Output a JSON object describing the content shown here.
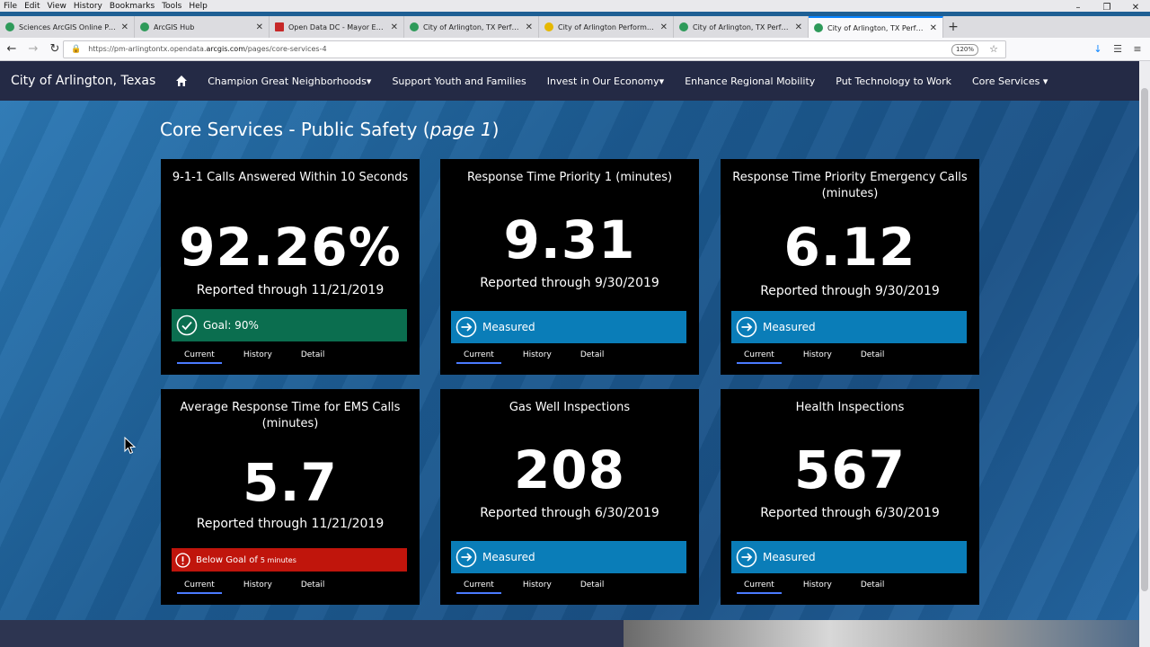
{
  "menu": [
    "File",
    "Edit",
    "View",
    "History",
    "Bookmarks",
    "Tools",
    "Help"
  ],
  "tabs": [
    {
      "title": "Sciences ArcGIS Online Portal"
    },
    {
      "title": "ArcGIS Hub"
    },
    {
      "title": "Open Data DC - Mayor Enviro"
    },
    {
      "title": "City of Arlington, TX Performa"
    },
    {
      "title": "City of Arlington Performance"
    },
    {
      "title": "City of Arlington, TX Performa"
    },
    {
      "title": "City of Arlington, TX Performa"
    }
  ],
  "url": {
    "prefix": "https://pm-arlingtontx.opendata.",
    "domain": "arcgis.com",
    "path": "/pages/core-services-4",
    "zoom": "120%"
  },
  "site": {
    "brand": "City of Arlington, Texas",
    "nav": [
      "Champion Great Neighborhoods",
      "Support Youth and Families",
      "Invest in Our Economy",
      "Enhance Regional Mobility",
      "Put Technology to Work",
      "Core Services"
    ]
  },
  "page": {
    "title": "Core Services - Public Safety (",
    "title_em": "page 1",
    "title_end": ")"
  },
  "tab_labels": {
    "current": "Current",
    "history": "History",
    "detail": "Detail"
  },
  "cards": [
    {
      "title": "9-1-1 Calls Answered Within 10 Seconds",
      "value": "92.26%",
      "sub": "Reported through 11/21/2019",
      "status": "Goal: 90%",
      "status_small": ""
    },
    {
      "title": "Response Time Priority 1 (minutes)",
      "value": "9.31",
      "sub": "Reported through 9/30/2019",
      "status": "Measured",
      "status_small": ""
    },
    {
      "title": "Response Time Priority Emergency Calls (minutes)",
      "value": "6.12",
      "sub": "Reported through 9/30/2019",
      "status": "Measured",
      "status_small": ""
    },
    {
      "title": "Average Response Time for EMS Calls (minutes)",
      "value": "5.7",
      "sub": "Reported through 11/21/2019",
      "status": "Below  Goal of",
      "status_small": "5 minutes"
    },
    {
      "title": "Gas Well Inspections",
      "value": "208",
      "sub": "Reported through 6/30/2019",
      "status": "Measured",
      "status_small": ""
    },
    {
      "title": "Health Inspections",
      "value": "567",
      "sub": "Reported through 6/30/2019",
      "status": "Measured",
      "status_small": ""
    }
  ],
  "colors": {
    "nav_bg": "#242a45",
    "goal_green": "#0b6e4f",
    "measured_blue": "#0a7db8",
    "below_red": "#c0150c"
  }
}
